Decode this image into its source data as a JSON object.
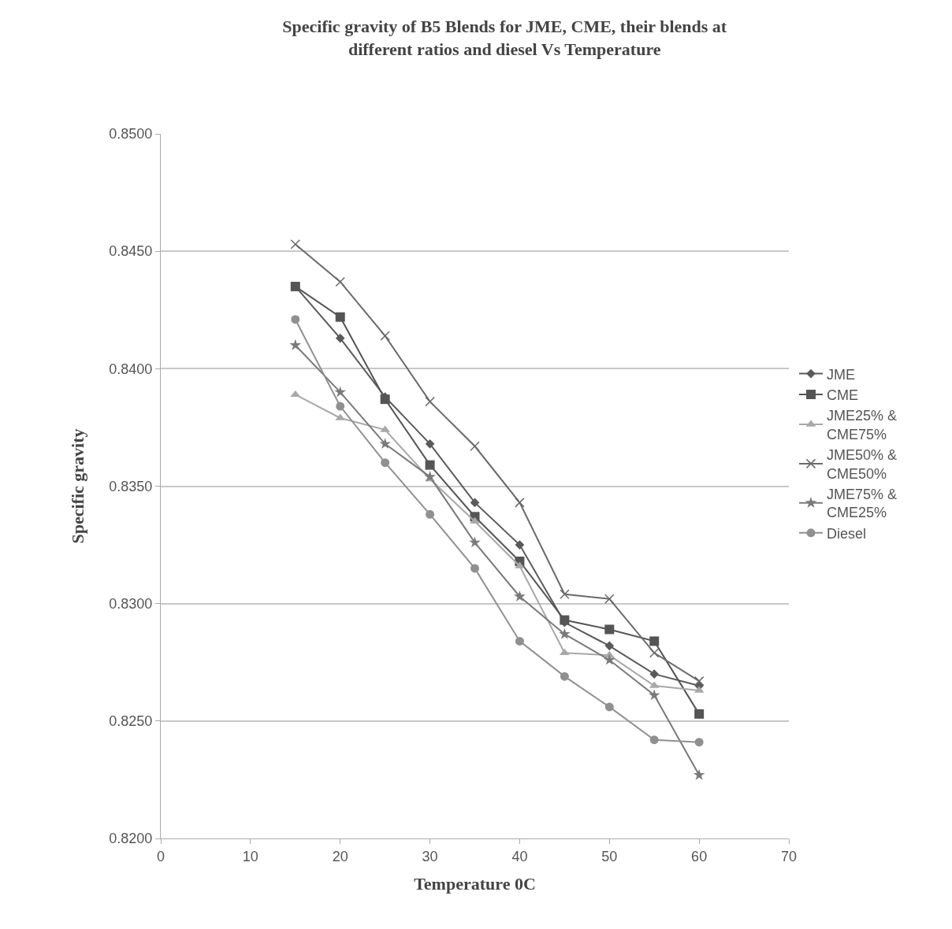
{
  "chart_data": {
    "type": "line",
    "title": "Specific gravity of B5 Blends for JME, CME, their blends at different ratios and diesel Vs Temperature",
    "xlabel": "Temperature 0C",
    "ylabel": "Specific gravity",
    "x": [
      15,
      20,
      25,
      30,
      35,
      40,
      45,
      50,
      55,
      60
    ],
    "xlim": [
      0,
      70
    ],
    "xticks": [
      0,
      10,
      20,
      30,
      40,
      50,
      60,
      70
    ],
    "ylim": [
      0.82,
      0.85
    ],
    "yticks": [
      {
        "value": 0.82,
        "label": "0.8200"
      },
      {
        "value": 0.825,
        "label": "0.8250"
      },
      {
        "value": 0.83,
        "label": "0.8300"
      },
      {
        "value": 0.835,
        "label": "0.8350"
      },
      {
        "value": 0.84,
        "label": "0.8400"
      },
      {
        "value": 0.845,
        "label": "0.8450"
      },
      {
        "value": 0.85,
        "label": "0.8500"
      }
    ],
    "grid": "y",
    "legend": "right",
    "series": [
      {
        "name": "JME",
        "color": "#5a5a5a",
        "marker": "diamond",
        "values": [
          0.8435,
          0.8413,
          0.8388,
          0.8368,
          0.8343,
          0.8325,
          0.8292,
          0.8282,
          0.827,
          0.8265
        ]
      },
      {
        "name": "CME",
        "color": "#555555",
        "marker": "square",
        "values": [
          0.8435,
          0.8422,
          0.8387,
          0.8359,
          0.8337,
          0.8318,
          0.8293,
          0.8289,
          0.8284,
          0.8253
        ]
      },
      {
        "name": "JME25% & CME75%",
        "color": "#a8a8a8",
        "marker": "triangle",
        "values": [
          0.8389,
          0.8379,
          0.8374,
          0.8353,
          0.8335,
          0.8316,
          0.8279,
          0.8278,
          0.8265,
          0.8263
        ]
      },
      {
        "name": "JME50% & CME50%",
        "color": "#6a6a6a",
        "marker": "cross",
        "values": [
          0.8453,
          0.8437,
          0.8414,
          0.8386,
          0.8367,
          0.8343,
          0.8304,
          0.8302,
          0.8279,
          0.8267
        ]
      },
      {
        "name": "JME75% & CME25%",
        "color": "#7a7a7a",
        "marker": "star",
        "values": [
          0.841,
          0.839,
          0.8368,
          0.8354,
          0.8326,
          0.8303,
          0.8287,
          0.8276,
          0.8261,
          0.8227
        ]
      },
      {
        "name": "Diesel",
        "color": "#909090",
        "marker": "circle",
        "values": [
          0.8421,
          0.8384,
          0.836,
          0.8338,
          0.8315,
          0.8284,
          0.8269,
          0.8256,
          0.8242,
          0.8241
        ]
      }
    ]
  }
}
